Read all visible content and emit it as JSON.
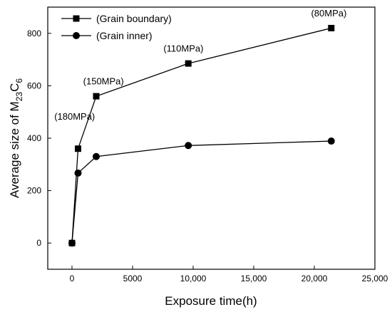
{
  "chart_data": {
    "type": "line",
    "xlabel": "Exposure time(h)",
    "ylabel": {
      "prefix": "Average size of M",
      "sub1": "23",
      "mid": "C",
      "sub2": "6"
    },
    "xlim": [
      -2000,
      25000
    ],
    "ylim": [
      -100,
      900
    ],
    "x_ticks": [
      0,
      5000,
      10000,
      15000,
      20000,
      25000
    ],
    "x_tick_labels": [
      "0",
      "5000",
      "10,000",
      "15,000",
      "20,000",
      "25,000"
    ],
    "y_ticks": [
      0,
      200,
      400,
      600,
      800
    ],
    "y_tick_labels": [
      "0",
      "200",
      "400",
      "600",
      "800"
    ],
    "grid": false,
    "legend_position": "top-left",
    "series": [
      {
        "name": "(Grain boundary)",
        "marker": "square",
        "color": "#000000",
        "x": [
          0,
          500,
          2000,
          9600,
          21400
        ],
        "y": [
          0,
          360,
          560,
          685,
          820
        ]
      },
      {
        "name": "(Grain inner)",
        "marker": "circle",
        "color": "#000000",
        "x": [
          0,
          500,
          2000,
          9600,
          21400
        ],
        "y": [
          0,
          267,
          330,
          372,
          389
        ]
      }
    ],
    "annotations": [
      {
        "text": "(180MPa)",
        "x": 220,
        "y": 470
      },
      {
        "text": "(150MPa)",
        "x": 2600,
        "y": 605
      },
      {
        "text": "(110MPa)",
        "x": 9200,
        "y": 730
      },
      {
        "text": "(80MPa)",
        "x": 21200,
        "y": 865
      }
    ]
  }
}
